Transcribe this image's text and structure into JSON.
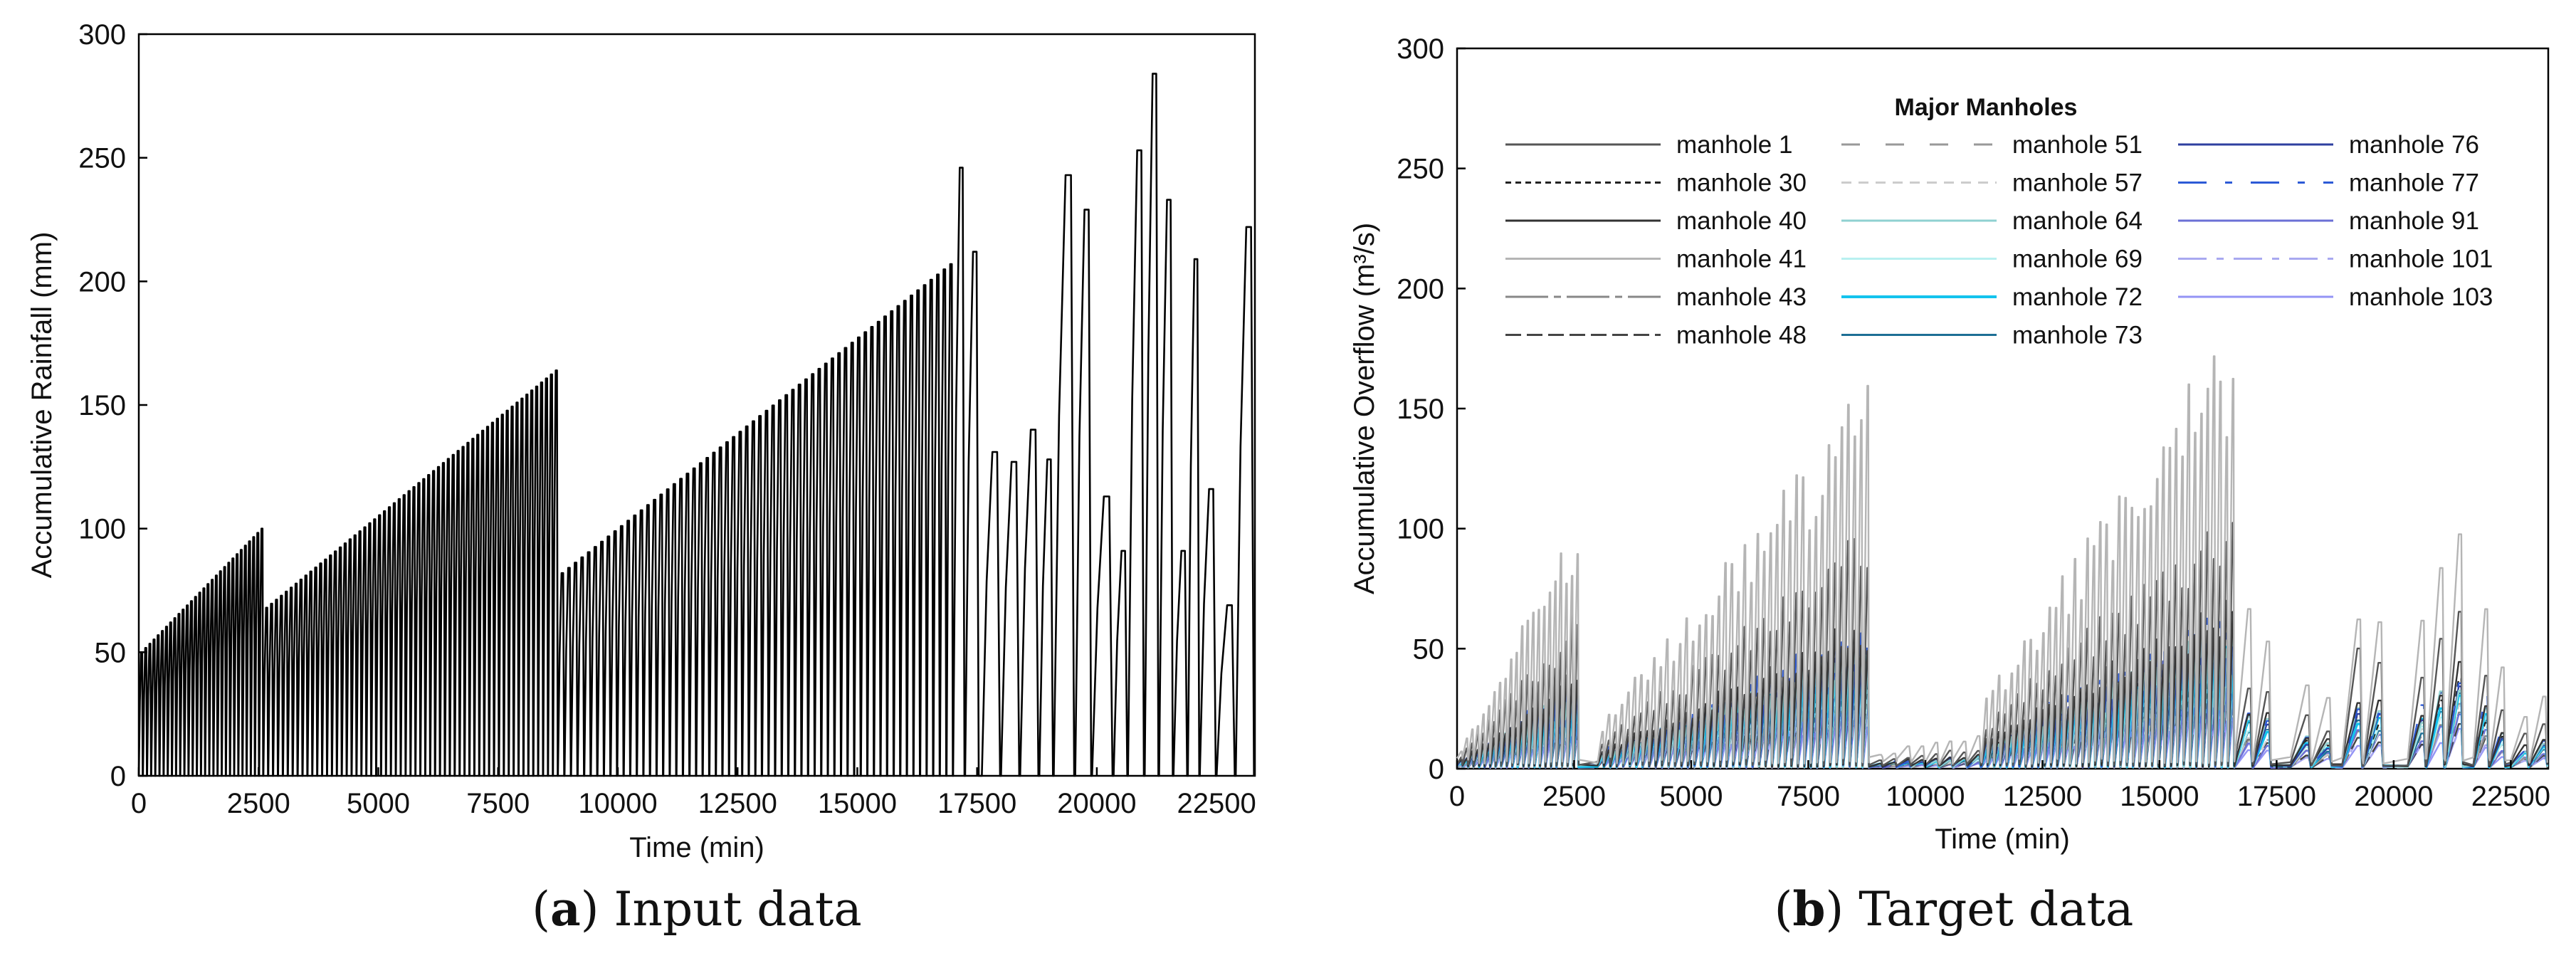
{
  "chart_data": [
    {
      "type": "line",
      "panel": "a",
      "caption_letter": "a",
      "caption_text": ") Input data",
      "caption_open": "(",
      "xlabel": "Time (min)",
      "ylabel": "Accumulative Rainfall (mm)",
      "xlim": [
        0,
        23300
      ],
      "ylim": [
        0,
        300
      ],
      "xticks": [
        "0",
        "2500",
        "5000",
        "7500",
        "10000",
        "12500",
        "15000",
        "17500",
        "20000",
        "22500"
      ],
      "yticks": [
        "0",
        "50",
        "100",
        "150",
        "200",
        "250",
        "300"
      ],
      "grid": false,
      "line_color": "#000000",
      "series": [
        {
          "events": [
            {
              "start": 0,
              "end": 2600,
              "count": 30,
              "start_peak": 50,
              "end_peak": 100
            },
            {
              "start": 2600,
              "end": 8750,
              "count": 60,
              "start_peak": 68,
              "end_peak": 164
            },
            {
              "start": 8750,
              "end": 17000,
              "count": 60,
              "start_peak": 82,
              "end_peak": 207
            },
            {
              "start": 17000,
              "end": 17250,
              "count": 1,
              "start_peak": 246,
              "end_peak": 246
            },
            {
              "start": 17250,
              "end": 17550,
              "count": 1,
              "start_peak": 212,
              "end_peak": 212
            },
            {
              "start": 17600,
              "end": 18000,
              "count": 1,
              "start_peak": 131,
              "end_peak": 131
            },
            {
              "start": 18000,
              "end": 18400,
              "count": 1,
              "start_peak": 127,
              "end_peak": 127
            },
            {
              "start": 18400,
              "end": 18800,
              "count": 1,
              "start_peak": 140,
              "end_peak": 140
            },
            {
              "start": 18800,
              "end": 19100,
              "count": 1,
              "start_peak": 128,
              "end_peak": 128
            },
            {
              "start": 19100,
              "end": 19550,
              "count": 1,
              "start_peak": 243,
              "end_peak": 243
            },
            {
              "start": 19550,
              "end": 19900,
              "count": 1,
              "start_peak": 229,
              "end_peak": 229
            },
            {
              "start": 19900,
              "end": 20350,
              "count": 1,
              "start_peak": 113,
              "end_peak": 113
            },
            {
              "start": 20350,
              "end": 20650,
              "count": 1,
              "start_peak": 91,
              "end_peak": 91
            },
            {
              "start": 20650,
              "end": 21000,
              "count": 1,
              "start_peak": 253,
              "end_peak": 253
            },
            {
              "start": 21000,
              "end": 21300,
              "count": 1,
              "start_peak": 284,
              "end_peak": 284
            },
            {
              "start": 21300,
              "end": 21600,
              "count": 1,
              "start_peak": 233,
              "end_peak": 233
            },
            {
              "start": 21600,
              "end": 21900,
              "count": 1,
              "start_peak": 91,
              "end_peak": 91
            },
            {
              "start": 21900,
              "end": 22150,
              "count": 1,
              "start_peak": 209,
              "end_peak": 209
            },
            {
              "start": 22150,
              "end": 22500,
              "count": 1,
              "start_peak": 116,
              "end_peak": 116
            },
            {
              "start": 22500,
              "end": 22900,
              "count": 1,
              "start_peak": 69,
              "end_peak": 69
            },
            {
              "start": 22900,
              "end": 23300,
              "count": 1,
              "start_peak": 222,
              "end_peak": 222
            }
          ]
        }
      ]
    },
    {
      "type": "line",
      "panel": "b",
      "caption_letter": "b",
      "caption_text": ") Target data",
      "caption_open": "(",
      "xlabel": "Time (min)",
      "ylabel": "Accumulative Overflow (m³/s)",
      "xlim": [
        0,
        23300
      ],
      "ylim": [
        0,
        300
      ],
      "xticks": [
        "0",
        "2500",
        "5000",
        "7500",
        "10000",
        "12500",
        "15000",
        "17500",
        "20000",
        "22500"
      ],
      "yticks": [
        "0",
        "50",
        "100",
        "150",
        "200",
        "250",
        "300"
      ],
      "grid": false,
      "legend": {
        "title": "Major Manholes",
        "placement": "top-center",
        "columns": 3
      },
      "events": [
        {
          "start": 0,
          "end": 2600,
          "count": 22,
          "start_peak": 8,
          "end_peak": 95
        },
        {
          "start": 3000,
          "end": 8800,
          "count": 42,
          "start_peak": 18,
          "end_peak": 143
        },
        {
          "start": 8800,
          "end": 11200,
          "count": 8,
          "start_peak": 6,
          "end_peak": 14
        },
        {
          "start": 11200,
          "end": 16600,
          "count": 40,
          "start_peak": 28,
          "end_peak": 164
        },
        {
          "start": 16600,
          "end": 17400,
          "count": 2,
          "start_peak": 60,
          "end_peak": 55
        },
        {
          "start": 17800,
          "end": 18700,
          "count": 2,
          "start_peak": 35,
          "end_peak": 28
        },
        {
          "start": 18900,
          "end": 19800,
          "count": 2,
          "start_peak": 72,
          "end_peak": 66
        },
        {
          "start": 20300,
          "end": 21500,
          "count": 3,
          "start_peak": 64,
          "end_peak": 110
        },
        {
          "start": 21700,
          "end": 22400,
          "count": 2,
          "start_peak": 71,
          "end_peak": 40
        },
        {
          "start": 22500,
          "end": 23300,
          "count": 2,
          "start_peak": 22,
          "end_peak": 28
        }
      ],
      "series": [
        {
          "name": "manhole 1",
          "color": "#555555",
          "dash": "",
          "width": 3,
          "scale": 0.62
        },
        {
          "name": "manhole 30",
          "color": "#222222",
          "dash": "8,6",
          "width": 3,
          "scale": 0.3
        },
        {
          "name": "manhole 40",
          "color": "#333333",
          "dash": "",
          "width": 3,
          "scale": 0.4
        },
        {
          "name": "manhole 41",
          "color": "#b5b5b5",
          "dash": "",
          "width": 3,
          "scale": 1.0
        },
        {
          "name": "manhole 43",
          "color": "#888888",
          "dash": "60,8,10,8",
          "width": 3,
          "scale": 0.2
        },
        {
          "name": "manhole 48",
          "color": "#444444",
          "dash": "22,8",
          "width": 3,
          "scale": 0.18
        },
        {
          "name": "manhole 51",
          "color": "#999999",
          "dash": "26,36",
          "width": 3,
          "scale": 0.22
        },
        {
          "name": "manhole 57",
          "color": "#cccccc",
          "dash": "14,10",
          "width": 3,
          "scale": 0.24
        },
        {
          "name": "manhole 64",
          "color": "#8fd1d1",
          "dash": "",
          "width": 3,
          "scale": 0.34
        },
        {
          "name": "manhole 69",
          "color": "#b8f0f0",
          "dash": "",
          "width": 3,
          "scale": 0.28
        },
        {
          "name": "manhole 72",
          "color": "#13c3ee",
          "dash": "",
          "width": 4,
          "scale": 0.3
        },
        {
          "name": "manhole 73",
          "color": "#1d6f95",
          "dash": "",
          "width": 3,
          "scale": 0.26
        },
        {
          "name": "manhole 76",
          "color": "#2e3fa0",
          "dash": "",
          "width": 3,
          "scale": 0.32
        },
        {
          "name": "manhole 77",
          "color": "#2d5ad6",
          "dash": "40,26,10,26",
          "width": 3,
          "scale": 0.38
        },
        {
          "name": "manhole 91",
          "color": "#6b6fd6",
          "dash": "",
          "width": 3,
          "scale": 0.2
        },
        {
          "name": "manhole 101",
          "color": "#a9a9f0",
          "dash": "40,14,10,14",
          "width": 3,
          "scale": 0.16
        },
        {
          "name": "manhole 103",
          "color": "#9494f5",
          "dash": "",
          "width": 3,
          "scale": 0.14
        }
      ]
    }
  ]
}
